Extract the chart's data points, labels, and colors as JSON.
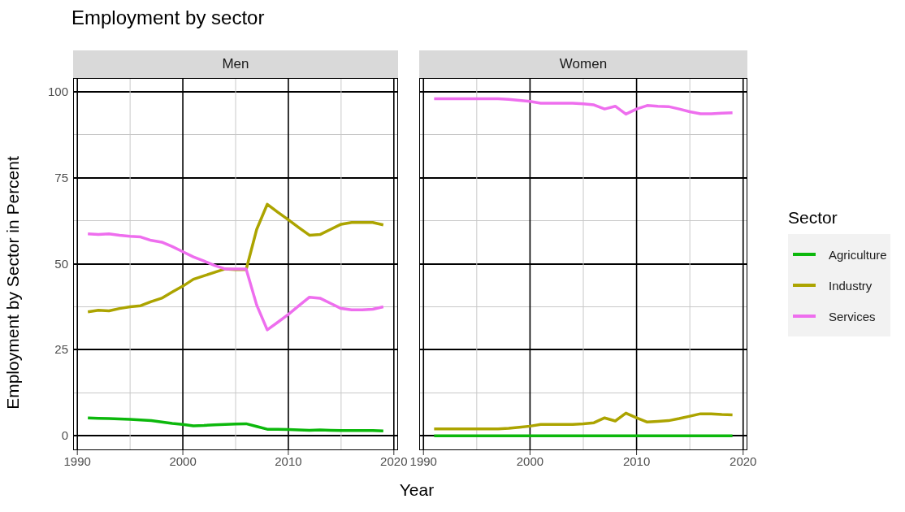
{
  "chart_data": [
    {
      "type": "line",
      "title": "Employment by sector",
      "subtitle": "Men",
      "xlabel": "Year",
      "ylabel": "Employment by Sector in Percent",
      "legend_title": "Sector",
      "legend": "right",
      "x": [
        1991,
        1992,
        1993,
        1994,
        1995,
        1996,
        1997,
        1998,
        1999,
        2000,
        2001,
        2002,
        2003,
        2004,
        2005,
        2006,
        2007,
        2008,
        2009,
        2010,
        2011,
        2012,
        2013,
        2014,
        2015,
        2016,
        2017,
        2018,
        2019
      ],
      "series": [
        {
          "name": "Agriculture",
          "color": "#0cb80c",
          "values": [
            5.2,
            5.1,
            5.0,
            4.9,
            4.8,
            4.6,
            4.4,
            4.0,
            3.6,
            3.3,
            2.9,
            3.0,
            3.2,
            3.3,
            3.4,
            3.5,
            2.7,
            1.9,
            1.9,
            1.8,
            1.7,
            1.6,
            1.7,
            1.6,
            1.5,
            1.5,
            1.5,
            1.5,
            1.4
          ]
        },
        {
          "name": "Industry",
          "color": "#aca400",
          "values": [
            36,
            36.5,
            36.3,
            37,
            37.5,
            37.8,
            39,
            40,
            41.8,
            43.5,
            45.5,
            46.5,
            47.5,
            48.5,
            48.3,
            48.3,
            60,
            67.3,
            65,
            62.8,
            60.5,
            58.3,
            58.5,
            60,
            61.5,
            62,
            62,
            62,
            61.3
          ]
        },
        {
          "name": "Services",
          "color": "#ee6eee",
          "values": [
            58.7,
            58.5,
            58.7,
            58.3,
            58,
            57.8,
            56.8,
            56.3,
            55,
            53.5,
            52,
            50.8,
            49.5,
            48.5,
            48.5,
            48.5,
            38,
            30.8,
            33,
            35.3,
            37.8,
            40.3,
            40,
            38.5,
            37,
            36.6,
            36.6,
            36.8,
            37.5
          ]
        }
      ],
      "xlim": [
        1989.6,
        2020.4
      ],
      "xticks": [
        1990,
        {
          "value": 1995,
          "label": null
        },
        2000,
        {
          "value": 2005,
          "label": null
        },
        2010,
        {
          "value": 2015,
          "label": null
        },
        2020
      ],
      "ylim": [
        -4.2,
        104
      ],
      "yticks": [
        0,
        {
          "value": 12.5,
          "label": null
        },
        25,
        {
          "value": 37.5,
          "label": null
        },
        50,
        {
          "value": 62.5,
          "label": null
        },
        75,
        {
          "value": 87.5,
          "label": null
        },
        100
      ],
      "grid": true
    },
    {
      "type": "line",
      "subtitle": "Women",
      "tick_labels": "x",
      "x": [
        1991,
        1992,
        1993,
        1994,
        1995,
        1996,
        1997,
        1998,
        1999,
        2000,
        2001,
        2002,
        2003,
        2004,
        2005,
        2006,
        2007,
        2008,
        2009,
        2010,
        2011,
        2012,
        2013,
        2014,
        2015,
        2016,
        2017,
        2018,
        2019
      ],
      "series": [
        {
          "color": "#0cb80c",
          "values": [
            0,
            0,
            0,
            0,
            0,
            0,
            0,
            0,
            0,
            0,
            0,
            0,
            0,
            0,
            0,
            0,
            0,
            0,
            0,
            0,
            0,
            0,
            0,
            0,
            0,
            0,
            0,
            0,
            0
          ]
        },
        {
          "color": "#aca400",
          "values": [
            2,
            2,
            2,
            2,
            2,
            2,
            2,
            2.2,
            2.5,
            2.8,
            3.3,
            3.3,
            3.3,
            3.3,
            3.5,
            3.8,
            5.2,
            4.3,
            6.6,
            5.2,
            4,
            4.2,
            4.4,
            5,
            5.7,
            6.4,
            6.4,
            6.2,
            6.1
          ]
        },
        {
          "color": "#ee6eee",
          "values": [
            98,
            98,
            98,
            98,
            98,
            98,
            98,
            97.8,
            97.5,
            97.2,
            96.7,
            96.7,
            96.7,
            96.7,
            96.5,
            96.2,
            95,
            95.8,
            93.5,
            95,
            96,
            95.8,
            95.7,
            95,
            94.2,
            93.6,
            93.6,
            93.8,
            93.9
          ]
        }
      ],
      "xlim": [
        1989.6,
        2020.4
      ],
      "xticks": [
        1990,
        {
          "value": 1995,
          "label": null
        },
        2000,
        {
          "value": 2005,
          "label": null
        },
        2010,
        {
          "value": 2015,
          "label": null
        },
        2020
      ],
      "ylim": [
        -4.2,
        104
      ],
      "yticks": [
        0,
        {
          "value": 12.5,
          "label": null
        },
        25,
        {
          "value": 37.5,
          "label": null
        },
        50,
        {
          "value": 62.5,
          "label": null
        },
        75,
        {
          "value": 87.5,
          "label": null
        },
        100
      ],
      "grid": true
    }
  ]
}
